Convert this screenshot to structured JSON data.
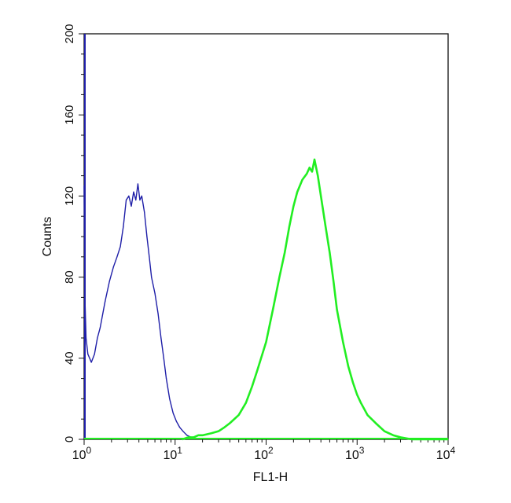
{
  "chart_data": {
    "type": "line",
    "title": "",
    "xlabel": "FL1-H",
    "ylabel": "Counts",
    "xscale": "log",
    "xlim": [
      1,
      10000
    ],
    "ylim": [
      0,
      200
    ],
    "x_ticks": [
      {
        "value": 1,
        "base": "10",
        "exp": "0"
      },
      {
        "value": 10,
        "base": "10",
        "exp": "1"
      },
      {
        "value": 100,
        "base": "10",
        "exp": "2"
      },
      {
        "value": 1000,
        "base": "10",
        "exp": "3"
      },
      {
        "value": 10000,
        "base": "10",
        "exp": "4"
      }
    ],
    "y_ticks": [
      {
        "value": 0,
        "label": "0"
      },
      {
        "value": 40,
        "label": "40"
      },
      {
        "value": 80,
        "label": "80"
      },
      {
        "value": 120,
        "label": "120"
      },
      {
        "value": 160,
        "label": "160"
      },
      {
        "value": 200,
        "label": "200"
      }
    ],
    "grid": false,
    "legend": "none",
    "series": [
      {
        "color": "#1f1fa8",
        "x": [
          1.0,
          1.02,
          1.05,
          1.1,
          1.15,
          1.2,
          1.3,
          1.4,
          1.5,
          1.7,
          1.9,
          2.1,
          2.3,
          2.5,
          2.7,
          2.9,
          3.1,
          3.3,
          3.5,
          3.7,
          3.9,
          4.1,
          4.3,
          4.6,
          4.9,
          5.2,
          5.5,
          6.0,
          6.5,
          7.0,
          7.5,
          8.0,
          8.7,
          9.5,
          10.3,
          11.2,
          12.2,
          13.5,
          15.0
        ],
        "y": [
          125,
          70,
          50,
          42,
          40,
          38,
          42,
          50,
          55,
          68,
          78,
          85,
          90,
          95,
          105,
          118,
          120,
          115,
          122,
          118,
          126,
          118,
          120,
          112,
          100,
          90,
          80,
          72,
          62,
          50,
          40,
          30,
          20,
          13,
          9,
          6,
          4,
          2,
          1
        ]
      },
      {
        "color": "#22ee22",
        "x": [
          12,
          14,
          16,
          18,
          20,
          25,
          30,
          35,
          40,
          50,
          60,
          70,
          80,
          100,
          120,
          140,
          160,
          180,
          200,
          220,
          250,
          280,
          300,
          320,
          340,
          370,
          400,
          450,
          500,
          550,
          600,
          700,
          800,
          900,
          1000,
          1100,
          1300,
          1600,
          2000,
          2500,
          3000,
          4000,
          6000,
          10000
        ],
        "y": [
          0,
          1,
          1,
          2,
          2,
          3,
          4,
          6,
          8,
          12,
          18,
          26,
          34,
          48,
          65,
          80,
          92,
          105,
          115,
          122,
          128,
          131,
          134,
          132,
          138,
          130,
          120,
          105,
          92,
          78,
          64,
          48,
          36,
          28,
          22,
          18,
          12,
          8,
          4,
          2,
          1,
          0,
          0,
          0
        ]
      }
    ]
  }
}
